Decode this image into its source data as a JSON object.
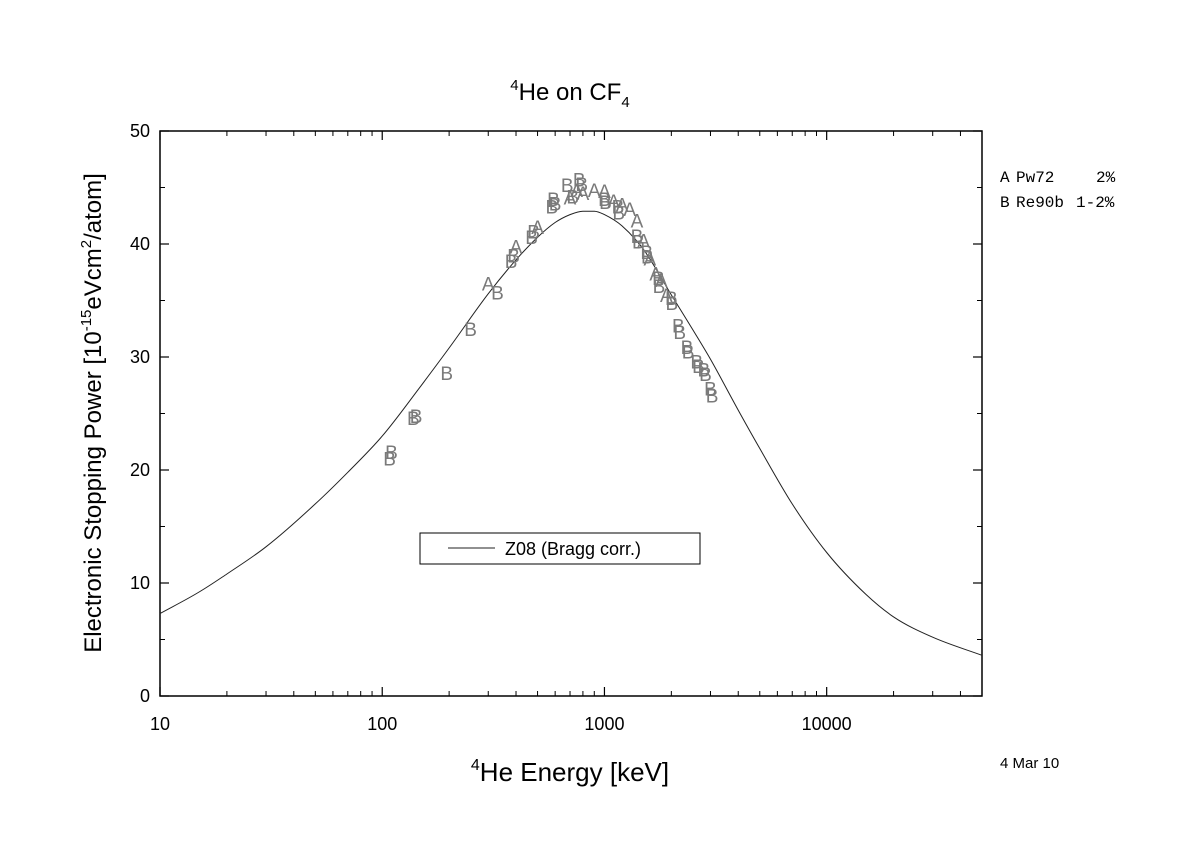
{
  "chart_data": {
    "type": "scatter",
    "title": {
      "sup": "4",
      "main": "He on CF",
      "sub": "4"
    },
    "xlabel": {
      "sup": "4",
      "main": "He Energy [keV]"
    },
    "ylabel": {
      "pre": "Electronic Stopping Power [10",
      "sup1": "-15",
      "mid": "eVcm",
      "sup2": "2",
      "post": "/atom]"
    },
    "x_scale": "log",
    "xlim": [
      10,
      50000
    ],
    "ylim": [
      0,
      50
    ],
    "x_ticks": [
      {
        "value": 10,
        "label": "10"
      },
      {
        "value": 100,
        "label": "100"
      },
      {
        "value": 1000,
        "label": "1000"
      },
      {
        "value": 10000,
        "label": "10000"
      }
    ],
    "y_ticks": [
      {
        "value": 0,
        "label": "0"
      },
      {
        "value": 10,
        "label": "10"
      },
      {
        "value": 20,
        "label": "20"
      },
      {
        "value": 30,
        "label": "30"
      },
      {
        "value": 40,
        "label": "40"
      },
      {
        "value": 50,
        "label": "50"
      }
    ],
    "grid": false,
    "legend": {
      "placement": "lower-center",
      "entries": [
        "Z08 (Bragg corr.)"
      ]
    },
    "series": [
      {
        "name": "Z08 (Bragg corr.)",
        "kind": "line",
        "x": [
          10,
          15,
          20,
          30,
          50,
          70,
          100,
          150,
          200,
          300,
          400,
          500,
          600,
          700,
          800,
          900,
          1000,
          1200,
          1500,
          2000,
          2500,
          3000,
          4000,
          5000,
          7000,
          10000,
          15000,
          20000,
          30000,
          50000
        ],
        "y": [
          7.3,
          9.2,
          10.8,
          13.2,
          17.0,
          19.8,
          23.0,
          27.5,
          30.8,
          35.6,
          38.6,
          40.6,
          41.9,
          42.6,
          42.9,
          42.9,
          42.6,
          41.6,
          39.5,
          35.5,
          32.4,
          29.8,
          25.3,
          21.9,
          17.0,
          12.7,
          9.0,
          7.0,
          5.2,
          3.6
        ]
      },
      {
        "name": "Pw72",
        "kind": "marker",
        "symbol": "A",
        "x": [
          300,
          400,
          500,
          700,
          750,
          800,
          900,
          1000,
          1100,
          1200,
          1300,
          1400,
          1500,
          1600,
          1700,
          1800,
          1900
        ],
        "y": [
          36.5,
          39.8,
          41.5,
          44.1,
          44.8,
          44.5,
          44.8,
          44.7,
          43.8,
          43.5,
          43.1,
          42.1,
          40.3,
          38.7,
          37.4,
          36.8,
          35.5
        ]
      },
      {
        "name": "Re90b",
        "kind": "marker",
        "symbol": "B",
        "x": [
          108,
          110,
          138,
          142,
          195,
          250,
          330,
          380,
          390,
          470,
          480,
          580,
          590,
          600,
          680,
          720,
          770,
          790,
          1000,
          1010,
          1150,
          1160,
          1400,
          1420,
          1550,
          1560,
          1750,
          1760,
          2000,
          2010,
          2150,
          2180,
          2350,
          2380,
          2600,
          2650,
          2800,
          2850,
          3000,
          3050
        ],
        "y": [
          21.0,
          21.6,
          24.6,
          24.8,
          28.6,
          32.5,
          35.7,
          38.5,
          39.0,
          40.6,
          41.1,
          43.3,
          44.0,
          43.6,
          45.2,
          44.2,
          45.7,
          45.3,
          44.0,
          43.7,
          43.3,
          42.8,
          40.7,
          40.2,
          39.3,
          38.9,
          37.0,
          36.3,
          35.2,
          34.8,
          32.8,
          32.2,
          30.9,
          30.5,
          29.6,
          29.2,
          28.9,
          28.5,
          27.2,
          26.6
        ]
      }
    ],
    "side_legend": [
      {
        "symbol": "A",
        "label": "Pw72",
        "uncertainty": "2%"
      },
      {
        "symbol": "B",
        "label": "Re90b",
        "uncertainty": "1-2%"
      }
    ],
    "date_stamp": "4 Mar 10"
  },
  "colors": {
    "line": "#222222",
    "marker": "#7a7a7a",
    "axis": "#000000"
  }
}
